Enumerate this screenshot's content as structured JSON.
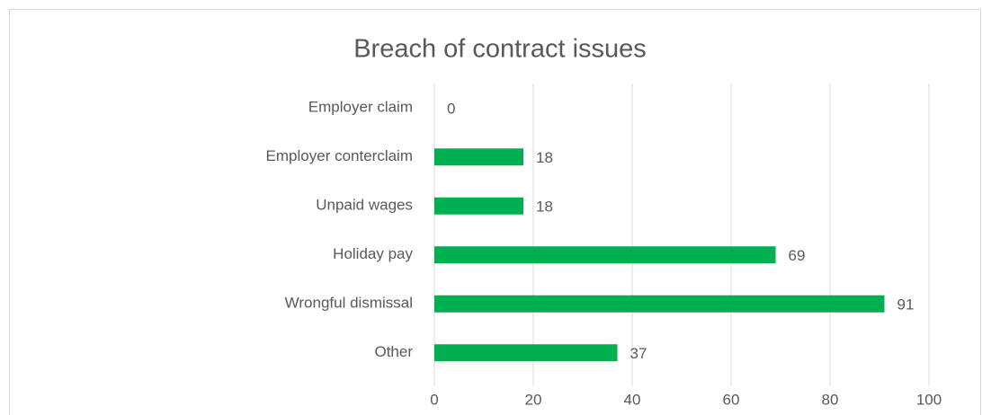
{
  "chart_data": {
    "type": "bar",
    "orientation": "horizontal",
    "title": "Breach of contract issues",
    "categories": [
      "Employer claim",
      "Employer conterclaim",
      "Unpaid wages",
      "Holiday pay",
      "Wrongful dismissal",
      "Other"
    ],
    "values": [
      0,
      18,
      18,
      69,
      91,
      37
    ],
    "color": "#00b050",
    "xlim": [
      0,
      100
    ],
    "xticks": [
      0,
      20,
      40,
      60,
      80,
      100
    ],
    "grid": true
  }
}
